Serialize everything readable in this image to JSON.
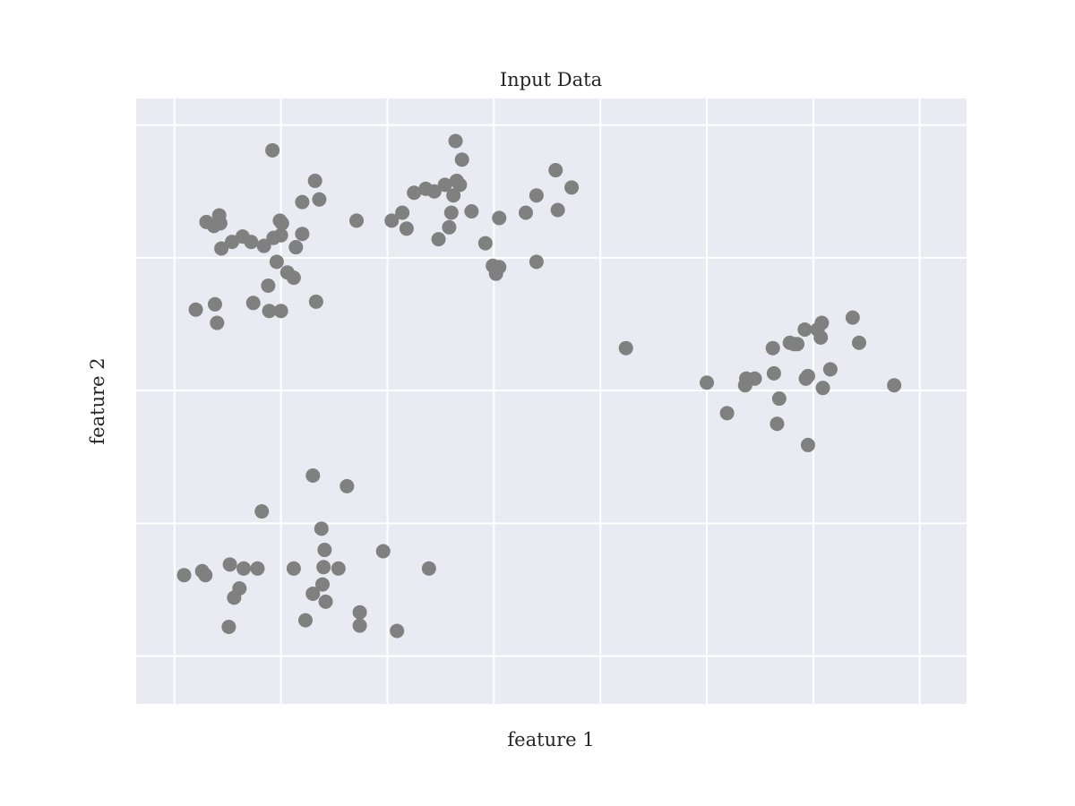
{
  "chart_data": {
    "type": "scatter",
    "title": "Input Data",
    "xlabel": "feature 1",
    "ylabel": "feature 2",
    "xlim": [
      -0.36,
      7.44
    ],
    "ylim": [
      -0.36,
      4.2
    ],
    "grid": true,
    "tick_labels_shown": false,
    "point_color": "#808080",
    "background_color": "#eaeaf2",
    "grid_color": "#ffffff",
    "points": [
      [
        0.3,
        3.27
      ],
      [
        0.37,
        3.24
      ],
      [
        0.43,
        3.26
      ],
      [
        0.44,
        3.07
      ],
      [
        0.54,
        3.12
      ],
      [
        0.64,
        3.16
      ],
      [
        0.72,
        3.12
      ],
      [
        0.84,
        3.09
      ],
      [
        0.93,
        3.15
      ],
      [
        0.99,
        3.28
      ],
      [
        1.01,
        3.26
      ],
      [
        1.0,
        3.17
      ],
      [
        0.96,
        2.97
      ],
      [
        1.06,
        2.89
      ],
      [
        1.14,
        3.08
      ],
      [
        1.2,
        3.18
      ],
      [
        1.2,
        3.42
      ],
      [
        1.32,
        3.58
      ],
      [
        1.36,
        3.44
      ],
      [
        0.42,
        3.32
      ],
      [
        0.92,
        3.81
      ],
      [
        0.2,
        2.61
      ],
      [
        0.38,
        2.65
      ],
      [
        0.4,
        2.51
      ],
      [
        0.74,
        2.66
      ],
      [
        0.88,
        2.79
      ],
      [
        0.89,
        2.6
      ],
      [
        1.0,
        2.6
      ],
      [
        1.12,
        2.85
      ],
      [
        1.33,
        2.67
      ],
      [
        1.71,
        3.28
      ],
      [
        2.04,
        3.28
      ],
      [
        2.18,
        3.22
      ],
      [
        2.25,
        3.49
      ],
      [
        2.36,
        3.52
      ],
      [
        2.44,
        3.5
      ],
      [
        2.54,
        3.55
      ],
      [
        2.6,
        3.34
      ],
      [
        2.58,
        3.23
      ],
      [
        2.68,
        3.55
      ],
      [
        2.62,
        3.47
      ],
      [
        2.65,
        3.58
      ],
      [
        2.7,
        3.74
      ],
      [
        2.64,
        3.88
      ],
      [
        2.79,
        3.35
      ],
      [
        2.92,
        3.11
      ],
      [
        2.99,
        2.94
      ],
      [
        3.02,
        2.88
      ],
      [
        3.05,
        2.93
      ],
      [
        3.05,
        3.3
      ],
      [
        3.3,
        3.34
      ],
      [
        3.4,
        3.47
      ],
      [
        3.4,
        2.97
      ],
      [
        3.58,
        3.66
      ],
      [
        3.6,
        3.36
      ],
      [
        3.73,
        3.53
      ],
      [
        2.14,
        3.34
      ],
      [
        2.48,
        3.14
      ],
      [
        4.24,
        2.32
      ],
      [
        5.0,
        2.06
      ],
      [
        5.19,
        1.83
      ],
      [
        5.37,
        2.09
      ],
      [
        5.36,
        2.04
      ],
      [
        5.45,
        2.09
      ],
      [
        5.63,
        2.13
      ],
      [
        5.68,
        1.94
      ],
      [
        5.62,
        2.32
      ],
      [
        5.82,
        2.35
      ],
      [
        5.85,
        2.35
      ],
      [
        5.78,
        2.36
      ],
      [
        5.92,
        2.46
      ],
      [
        5.95,
        2.11
      ],
      [
        6.04,
        2.46
      ],
      [
        6.07,
        2.4
      ],
      [
        6.08,
        2.51
      ],
      [
        6.37,
        2.55
      ],
      [
        6.43,
        2.36
      ],
      [
        5.93,
        2.09
      ],
      [
        6.16,
        2.16
      ],
      [
        6.09,
        2.02
      ],
      [
        6.76,
        2.04
      ],
      [
        5.66,
        1.75
      ],
      [
        5.95,
        1.59
      ],
      [
        0.09,
        0.61
      ],
      [
        0.26,
        0.64
      ],
      [
        0.29,
        0.61
      ],
      [
        0.52,
        0.69
      ],
      [
        0.65,
        0.66
      ],
      [
        0.78,
        0.66
      ],
      [
        0.82,
        1.09
      ],
      [
        0.56,
        0.44
      ],
      [
        0.61,
        0.51
      ],
      [
        0.51,
        0.22
      ],
      [
        1.12,
        0.66
      ],
      [
        1.3,
        1.36
      ],
      [
        1.38,
        0.96
      ],
      [
        1.41,
        0.8
      ],
      [
        1.4,
        0.67
      ],
      [
        1.39,
        0.54
      ],
      [
        1.54,
        0.66
      ],
      [
        1.62,
        1.28
      ],
      [
        1.96,
        0.79
      ],
      [
        1.3,
        0.47
      ],
      [
        1.42,
        0.41
      ],
      [
        1.23,
        0.27
      ],
      [
        1.74,
        0.33
      ],
      [
        1.74,
        0.23
      ],
      [
        2.09,
        0.19
      ],
      [
        2.39,
        0.66
      ]
    ]
  }
}
